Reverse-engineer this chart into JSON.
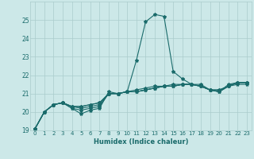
{
  "xlabel": "Humidex (Indice chaleur)",
  "ylabel": "",
  "bg_color": "#cce8e8",
  "grid_color": "#aacccc",
  "line_color": "#1a6b6b",
  "xlim": [
    -0.5,
    23.5
  ],
  "ylim": [
    19,
    26
  ],
  "yticks": [
    19,
    20,
    21,
    22,
    23,
    24,
    25
  ],
  "xticks": [
    0,
    1,
    2,
    3,
    4,
    5,
    6,
    7,
    8,
    9,
    10,
    11,
    12,
    13,
    14,
    15,
    16,
    17,
    18,
    19,
    20,
    21,
    22,
    23
  ],
  "series": [
    [
      19.1,
      20.0,
      20.4,
      20.5,
      20.2,
      19.9,
      20.1,
      20.2,
      21.1,
      21.0,
      21.1,
      22.8,
      24.9,
      25.3,
      25.2,
      22.2,
      21.8,
      21.5,
      21.5,
      21.2,
      21.1,
      21.5,
      21.6,
      21.6
    ],
    [
      19.1,
      20.0,
      20.4,
      20.5,
      20.2,
      20.1,
      20.2,
      20.3,
      21.0,
      21.0,
      21.1,
      21.2,
      21.3,
      21.4,
      21.4,
      21.5,
      21.5,
      21.5,
      21.4,
      21.2,
      21.1,
      21.4,
      21.6,
      21.6
    ],
    [
      19.1,
      20.0,
      20.4,
      20.5,
      20.3,
      20.2,
      20.3,
      20.4,
      21.0,
      21.0,
      21.1,
      21.1,
      21.2,
      21.3,
      21.4,
      21.4,
      21.5,
      21.5,
      21.4,
      21.2,
      21.1,
      21.4,
      21.6,
      21.6
    ],
    [
      19.1,
      20.0,
      20.4,
      20.5,
      20.3,
      20.3,
      20.4,
      20.5,
      21.0,
      21.0,
      21.1,
      21.1,
      21.2,
      21.3,
      21.4,
      21.4,
      21.5,
      21.5,
      21.4,
      21.2,
      21.2,
      21.4,
      21.6,
      21.6
    ],
    [
      19.1,
      20.0,
      20.4,
      20.5,
      20.3,
      20.3,
      20.4,
      20.5,
      21.0,
      21.0,
      21.1,
      21.1,
      21.2,
      21.3,
      21.4,
      21.4,
      21.5,
      21.5,
      21.4,
      21.2,
      21.2,
      21.4,
      21.5,
      21.5
    ]
  ]
}
